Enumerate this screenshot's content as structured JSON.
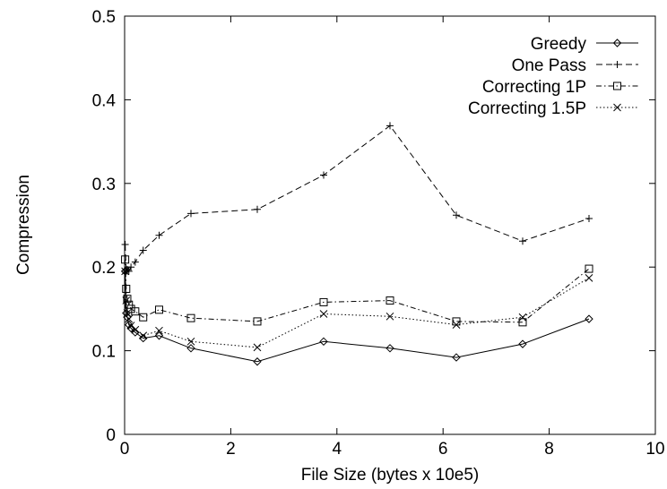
{
  "chart_data": {
    "type": "line",
    "title": "",
    "xlabel": "File Size (bytes x 10e5)",
    "ylabel": "Compression",
    "xlim": [
      0,
      10
    ],
    "ylim": [
      0,
      0.5
    ],
    "xticks": [
      0,
      2,
      4,
      6,
      8,
      10
    ],
    "yticks": [
      0,
      0.1,
      0.2,
      0.3,
      0.4,
      0.5
    ],
    "xtick_labels": [
      "0",
      "2",
      "4",
      "6",
      "8",
      "10"
    ],
    "ytick_labels": [
      "0",
      "0.1",
      "0.2",
      "0.3",
      "0.4",
      "0.5"
    ],
    "grid": false,
    "legend_position": "top-right",
    "series": [
      {
        "name": "Greedy",
        "marker": "diamond",
        "dash": "solid",
        "x": [
          0.01,
          0.03,
          0.05,
          0.08,
          0.12,
          0.2,
          0.35,
          0.65,
          1.25,
          2.5,
          3.75,
          5.0,
          6.25,
          7.5,
          8.75
        ],
        "y": [
          0.195,
          0.145,
          0.14,
          0.131,
          0.127,
          0.122,
          0.115,
          0.118,
          0.103,
          0.087,
          0.111,
          0.103,
          0.092,
          0.108,
          0.138
        ]
      },
      {
        "name": "One Pass",
        "marker": "plus",
        "dash": "dashed",
        "x": [
          0.01,
          0.03,
          0.05,
          0.08,
          0.12,
          0.2,
          0.35,
          0.65,
          1.25,
          2.5,
          3.75,
          5.0,
          6.25,
          7.5,
          8.75
        ],
        "y": [
          0.227,
          0.195,
          0.197,
          0.195,
          0.2,
          0.206,
          0.22,
          0.238,
          0.264,
          0.269,
          0.31,
          0.369,
          0.262,
          0.231,
          0.258
        ]
      },
      {
        "name": "Correcting 1P",
        "marker": "square",
        "dash": "dashdot",
        "x": [
          0.01,
          0.03,
          0.05,
          0.08,
          0.12,
          0.2,
          0.35,
          0.65,
          1.25,
          2.5,
          3.75,
          5.0,
          6.25,
          7.5,
          8.75
        ],
        "y": [
          0.209,
          0.174,
          0.162,
          0.155,
          0.15,
          0.147,
          0.14,
          0.149,
          0.139,
          0.135,
          0.158,
          0.16,
          0.135,
          0.134,
          0.198
        ]
      },
      {
        "name": "Correcting 1.5P",
        "marker": "cross",
        "dash": "dotted",
        "x": [
          0.01,
          0.03,
          0.05,
          0.08,
          0.12,
          0.2,
          0.35,
          0.65,
          1.25,
          2.5,
          3.75,
          5.0,
          6.25,
          7.5,
          8.75
        ],
        "y": [
          0.195,
          0.16,
          0.145,
          0.138,
          0.13,
          0.125,
          0.118,
          0.124,
          0.111,
          0.104,
          0.144,
          0.141,
          0.131,
          0.14,
          0.187
        ]
      }
    ]
  }
}
